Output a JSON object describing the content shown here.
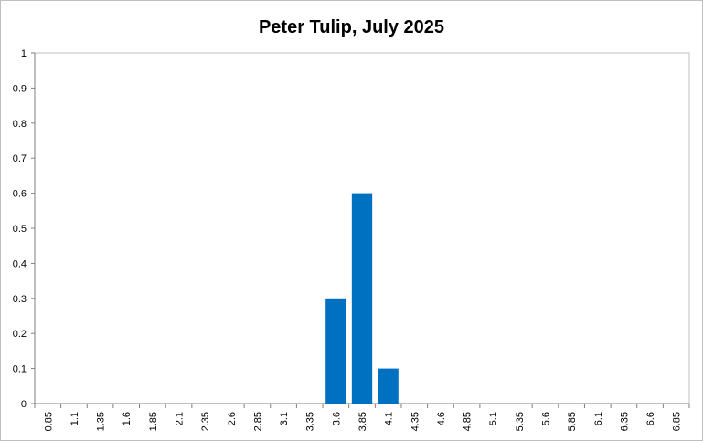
{
  "chart_data": {
    "type": "bar",
    "title": "Peter Tulip, July 2025",
    "xlabel": "",
    "ylabel": "",
    "categories": [
      "0.85",
      "1.1",
      "1.35",
      "1.6",
      "1.85",
      "2.1",
      "2.35",
      "2.6",
      "2.85",
      "3.1",
      "3.35",
      "3.6",
      "3.85",
      "4.1",
      "4.35",
      "4.6",
      "4.85",
      "5.1",
      "5.35",
      "5.6",
      "5.85",
      "6.1",
      "6.35",
      "6.6",
      "6.85"
    ],
    "values": [
      0,
      0,
      0,
      0,
      0,
      0,
      0,
      0,
      0,
      0,
      0,
      0.3,
      0.6,
      0.1,
      0,
      0,
      0,
      0,
      0,
      0,
      0,
      0,
      0,
      0,
      0
    ],
    "ylim": [
      0,
      1
    ],
    "yticks": [
      "0",
      "0.1",
      "0.2",
      "0.3",
      "0.4",
      "0.5",
      "0.6",
      "0.7",
      "0.8",
      "0.9",
      "1"
    ],
    "grid": false,
    "legend": "none",
    "bar_color": "#0070C0",
    "axis_color": "#7f7f7f"
  }
}
